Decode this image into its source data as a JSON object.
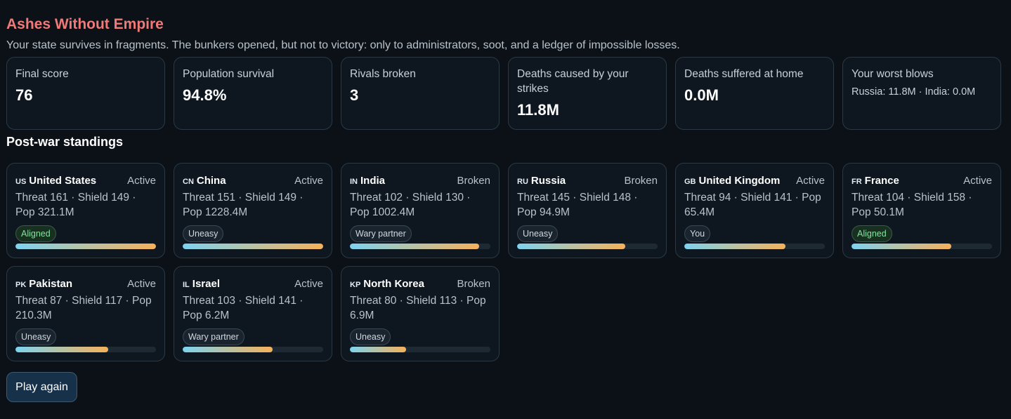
{
  "header": {
    "title": "Ashes Without Empire",
    "subtitle": "Your state survives in fragments. The bunkers opened, but not to victory: only to administrators, soot, and a ledger of impossible losses."
  },
  "stats": [
    {
      "label": "Final score",
      "value": "76"
    },
    {
      "label": "Population survival",
      "value": "94.8%"
    },
    {
      "label": "Rivals broken",
      "value": "3"
    },
    {
      "label": "Deaths caused by your strikes",
      "value": "11.8M"
    },
    {
      "label": "Deaths suffered at home",
      "value": "0.0M"
    },
    {
      "label": "Your worst blows",
      "note": "Russia: 11.8M · India: 0.0M"
    }
  ],
  "standings": {
    "title": "Post-war standings",
    "nations": [
      {
        "code": "US",
        "name": "United States",
        "status": "Active",
        "stats": "Threat 161 · Shield 149 · Pop 321.1M",
        "badge": "Aligned",
        "level": 1.0
      },
      {
        "code": "CN",
        "name": "China",
        "status": "Active",
        "stats": "Threat 151 · Shield 149 · Pop 1228.4M",
        "badge": "Uneasy",
        "level": 1.0
      },
      {
        "code": "IN",
        "name": "India",
        "status": "Broken",
        "stats": "Threat 102 · Shield 130 · Pop 1002.4M",
        "badge": "Wary partner",
        "level": 0.92
      },
      {
        "code": "RU",
        "name": "Russia",
        "status": "Broken",
        "stats": "Threat 145 · Shield 148 · Pop 94.9M",
        "badge": "Uneasy",
        "level": 0.77
      },
      {
        "code": "GB",
        "name": "United Kingdom",
        "status": "Active",
        "stats": "Threat 94 · Shield 141 · Pop 65.4M",
        "badge": "You",
        "level": 0.72
      },
      {
        "code": "FR",
        "name": "France",
        "status": "Active",
        "stats": "Threat 104 · Shield 158 · Pop 50.1M",
        "badge": "Aligned",
        "level": 0.71
      },
      {
        "code": "PK",
        "name": "Pakistan",
        "status": "Active",
        "stats": "Threat 87 · Shield 117 · Pop 210.3M",
        "badge": "Uneasy",
        "level": 0.66
      },
      {
        "code": "IL",
        "name": "Israel",
        "status": "Active",
        "stats": "Threat 103 · Shield 141 · Pop 6.2M",
        "badge": "Wary partner",
        "level": 0.64
      },
      {
        "code": "KP",
        "name": "North Korea",
        "status": "Broken",
        "stats": "Threat 80 · Shield 113 · Pop 6.9M",
        "badge": "Uneasy",
        "level": 0.4
      }
    ]
  },
  "actions": {
    "play_again": "Play again"
  },
  "colors": {
    "title": "#ef7a78",
    "bar_start": "#7dd3f0",
    "bar_end": "#f5b15a",
    "aligned": "#86e0a0",
    "background": "#0b1117"
  }
}
